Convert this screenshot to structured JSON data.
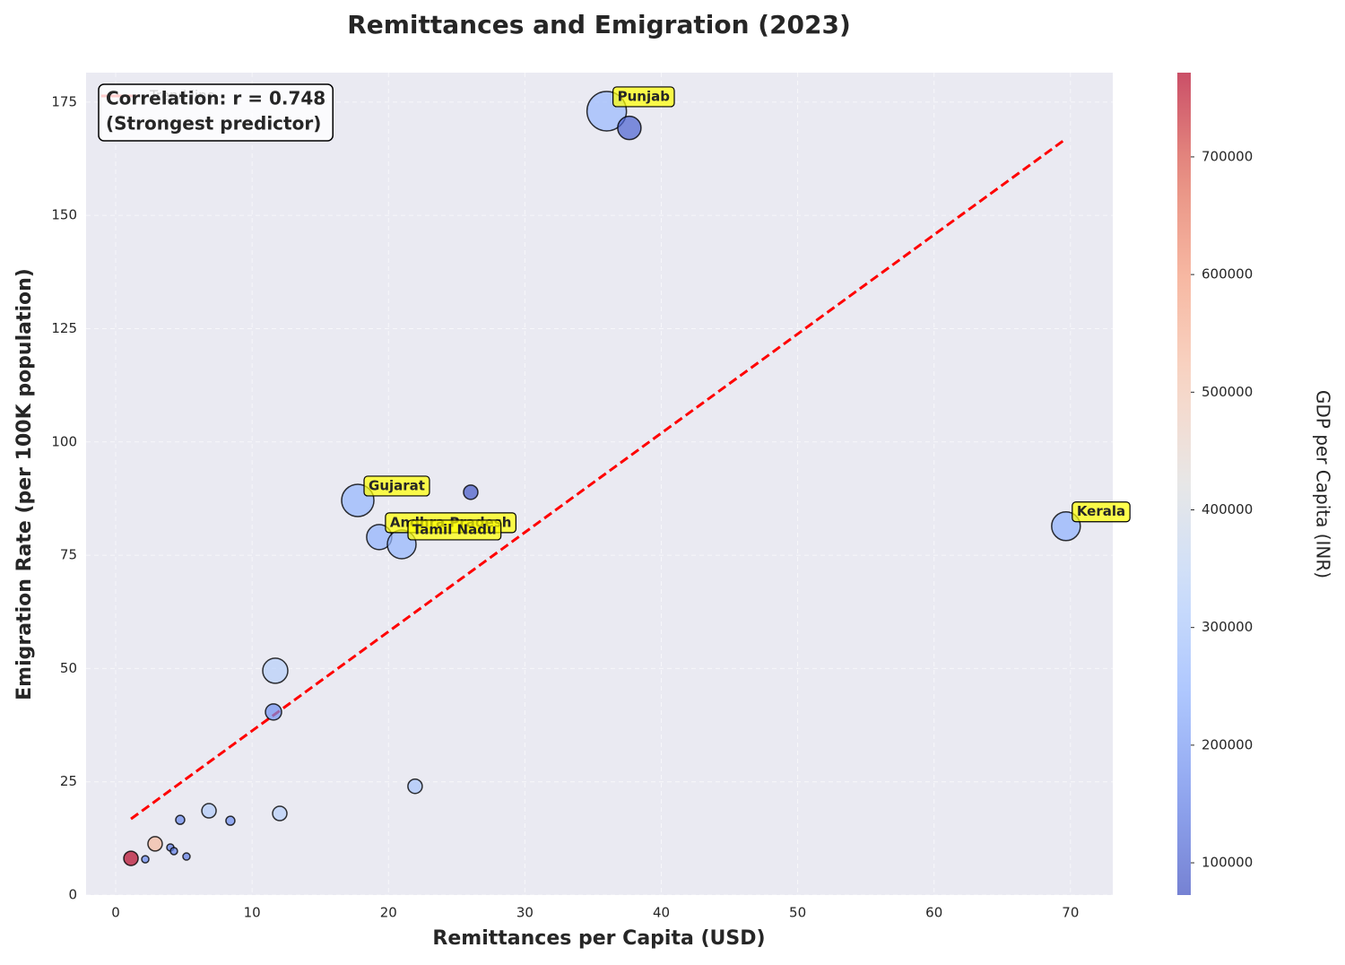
{
  "chart_data": {
    "type": "scatter",
    "title": "Remittances and Emigration (2023)",
    "x_label": "Remittances per Capita (USD)",
    "y_label": "Emigration Rate (per 100K population)",
    "colorbar_label": "GDP per Capita (INR)",
    "x": [
      36.0,
      37.66,
      17.75,
      26.03,
      19.32,
      20.97,
      69.67,
      11.7,
      11.57,
      21.95,
      12.03,
      6.84,
      8.41,
      4.73,
      2.89,
      1.12,
      2.17,
      4.01,
      4.27,
      5.19
    ],
    "values": [
      173.0,
      169.3,
      87.1,
      88.9,
      79.0,
      77.4,
      81.4,
      49.5,
      40.4,
      24.0,
      18.0,
      18.6,
      16.4,
      16.6,
      11.3,
      8.1,
      7.9,
      10.5,
      9.7,
      8.5
    ],
    "sizes": [
      484,
      169,
      324,
      64,
      196,
      256,
      256,
      196,
      81,
      64,
      64,
      64,
      25,
      25,
      64,
      64,
      16,
      16,
      16,
      16
    ],
    "color_values": [
      270000,
      110000,
      260000,
      90000,
      250000,
      260000,
      250000,
      330000,
      190000,
      300000,
      330000,
      320000,
      180000,
      170000,
      530000,
      770000,
      170000,
      150000,
      150000,
      150000
    ],
    "labels": [
      "Punjab",
      null,
      "Gujarat",
      null,
      "Andhra Pradesh",
      "Tamil Nadu",
      "Kerala",
      null,
      null,
      null,
      null,
      null,
      null,
      null,
      null,
      null,
      null,
      null,
      null,
      null
    ],
    "trend": {
      "name": "Trend line",
      "color": "#ff0000",
      "x": [
        1.12,
        69.67
      ],
      "values": [
        16.8,
        166.9
      ]
    },
    "annotation": [
      "Correlation: r = 0.748",
      "(Strongest predictor)"
    ],
    "xlim": [
      -2.17,
      73.1
    ],
    "ylim": [
      0,
      181.5
    ],
    "clim": [
      72600,
      771600
    ],
    "xticks": [
      0,
      10,
      20,
      30,
      40,
      50,
      60,
      70
    ],
    "yticks": [
      0,
      25,
      50,
      75,
      100,
      125,
      150,
      175
    ],
    "cticks": [
      100000,
      200000,
      300000,
      400000,
      500000,
      600000,
      700000
    ],
    "colormap": "coolwarm",
    "grid": true
  }
}
